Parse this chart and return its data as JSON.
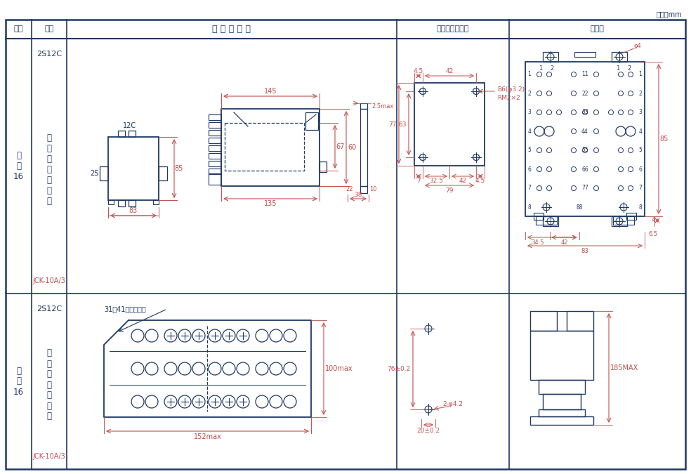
{
  "unit_text": "单位：mm",
  "col_headers": [
    "图号",
    "结构",
    "外 形 尺 寸 图",
    "安装开孔尺寸图",
    "端子图"
  ],
  "text_color": "#1f3864",
  "dim_color": "#c0504d",
  "line_color": "#1f3864",
  "bg_color": "#ffffff"
}
